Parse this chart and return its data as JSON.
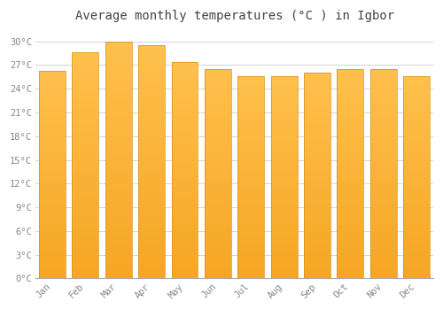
{
  "months": [
    "Jan",
    "Feb",
    "Mar",
    "Apr",
    "May",
    "Jun",
    "Jul",
    "Aug",
    "Sep",
    "Oct",
    "Nov",
    "Dec"
  ],
  "temperatures": [
    26.3,
    28.6,
    30.0,
    29.5,
    27.4,
    26.5,
    25.6,
    25.6,
    26.0,
    26.5,
    26.5,
    25.6
  ],
  "bar_color_top": "#FFC04D",
  "bar_color_bottom": "#F5A623",
  "bar_edge_color": "#D4921A",
  "background_color": "#FFFFFF",
  "plot_bg_color": "#FFFFFF",
  "grid_color": "#CCCCCC",
  "title": "Average monthly temperatures (°C ) in Igbor",
  "title_fontsize": 10,
  "tick_label_color": "#888888",
  "title_color": "#444444",
  "ylim": [
    0,
    31.5
  ],
  "yticks": [
    0,
    3,
    6,
    9,
    12,
    15,
    18,
    21,
    24,
    27,
    30
  ],
  "ytick_labels": [
    "0°C",
    "3°C",
    "6°C",
    "9°C",
    "12°C",
    "15°C",
    "18°C",
    "21°C",
    "24°C",
    "27°C",
    "30°C"
  ],
  "bar_width": 0.8
}
